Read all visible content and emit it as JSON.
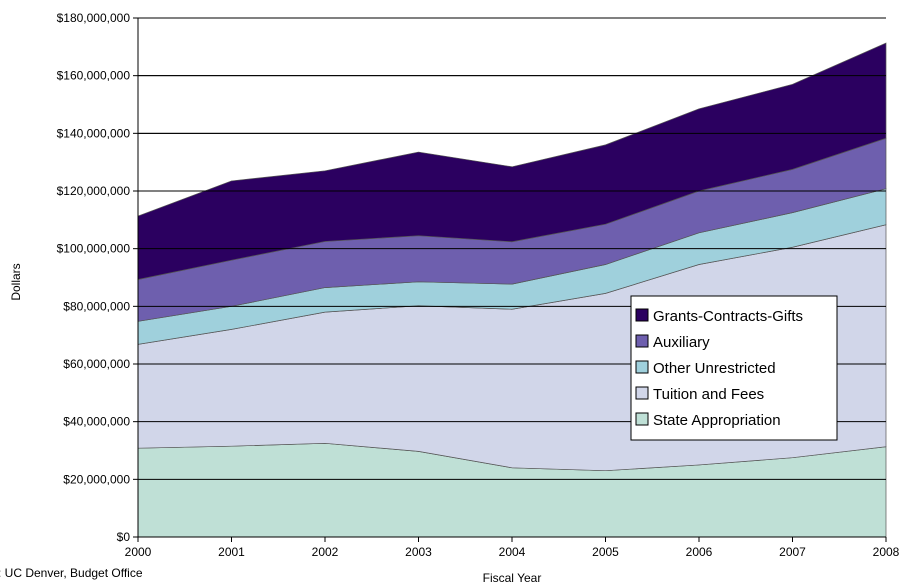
{
  "chart_data": {
    "type": "area",
    "stacked": true,
    "title": "",
    "xlabel": "Fiscal Year",
    "ylabel": "Dollars",
    "ylim": [
      0,
      180000000
    ],
    "x": [
      "2000",
      "2001",
      "2002",
      "2003",
      "2004",
      "2005",
      "2006",
      "2007",
      "2008"
    ],
    "y_ticks": [
      "$0",
      "$20,000,000",
      "$40,000,000",
      "$60,000,000",
      "$80,000,000",
      "$100,000,000",
      "$120,000,000",
      "$140,000,000",
      "$160,000,000",
      "$180,000,000"
    ],
    "grid": "horizontal lines above stacked areas",
    "legend_position": "right, inside plot",
    "source_note": ": UC Denver, Budget Office",
    "series": [
      {
        "name": "State Appropriation",
        "color": "#bfe0d6",
        "values": [
          30800000,
          31500000,
          32500000,
          29700000,
          24000000,
          23000000,
          25000000,
          27500000,
          31300000
        ]
      },
      {
        "name": "Tuition and Fees",
        "color": "#d1d6e9",
        "values": [
          36000000,
          40500000,
          45500000,
          50500000,
          55000000,
          61500000,
          69500000,
          73000000,
          77000000
        ]
      },
      {
        "name": "Other Unrestricted",
        "color": "#9fd0dc",
        "values": [
          8000000,
          8000000,
          8500000,
          8300000,
          8700000,
          10000000,
          11000000,
          12000000,
          12500000
        ]
      },
      {
        "name": "Auxiliary",
        "color": "#6e5fae",
        "values": [
          14500000,
          16000000,
          16000000,
          16000000,
          14700000,
          14000000,
          14500000,
          15000000,
          17500000
        ]
      },
      {
        "name": "Grants-Contracts-Gifts",
        "color": "#2b0060",
        "values": [
          22000000,
          27500000,
          24500000,
          29000000,
          26000000,
          27500000,
          28500000,
          29500000,
          33000000
        ]
      }
    ],
    "legend_order": [
      "Grants-Contracts-Gifts",
      "Auxiliary",
      "Other Unrestricted",
      "Tuition and Fees",
      "State Appropriation"
    ]
  }
}
